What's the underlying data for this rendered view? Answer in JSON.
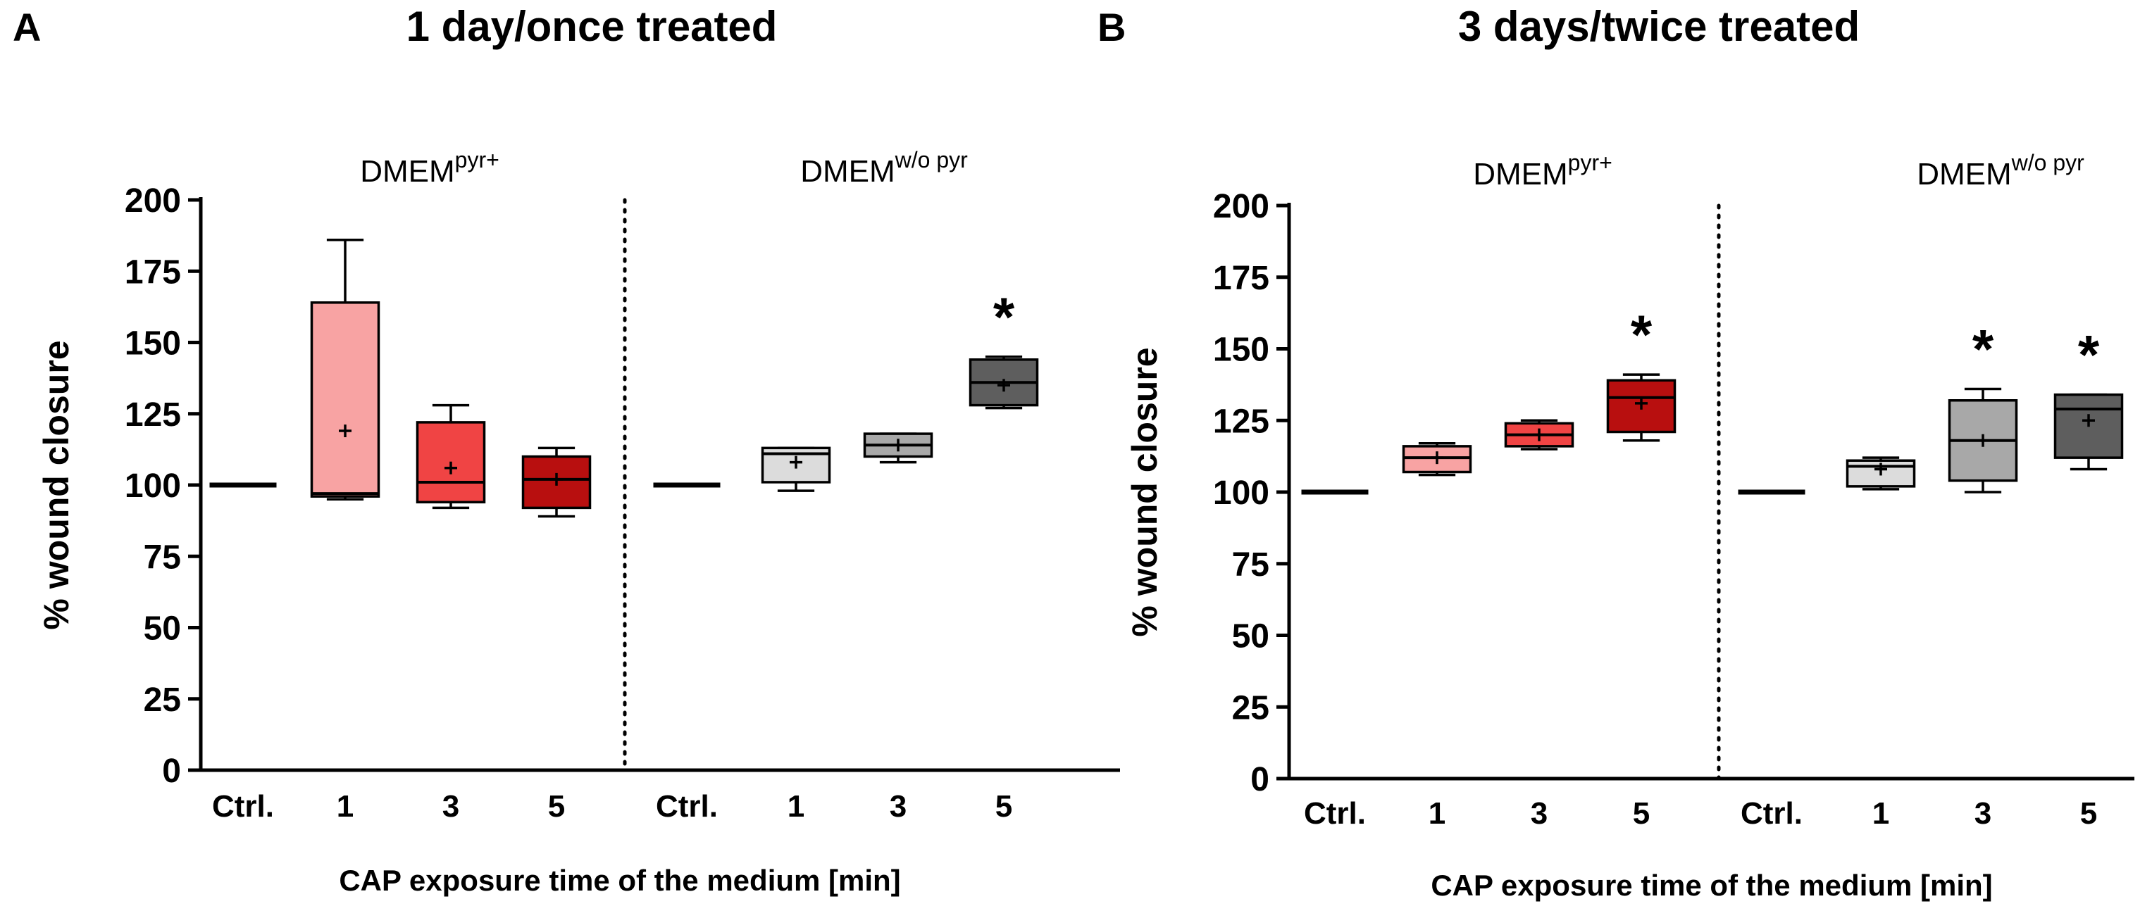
{
  "chart_data": [
    {
      "type": "box",
      "panel_label": "A",
      "title": "1 day/once treated",
      "ylabel": "% wound closure",
      "xlabel": "CAP exposure time of the medium [min]",
      "ylim": [
        0,
        200
      ],
      "yticks": [
        "0",
        "25",
        "50",
        "75",
        "100",
        "125",
        "150",
        "175",
        "200"
      ],
      "grid": false,
      "groups": [
        {
          "base": "DMEM",
          "sup": "pyr+",
          "boxes": [
            {
              "label": "Ctrl.",
              "color": "#000000",
              "whisker_low": 100,
              "q1": 100,
              "median": 100,
              "q3": 100,
              "whisker_high": 100,
              "mean": 100,
              "sig": ""
            },
            {
              "label": "1",
              "color": "#F8A3A3",
              "whisker_low": 95,
              "q1": 96,
              "median": 97,
              "q3": 164,
              "whisker_high": 186,
              "mean": 119,
              "sig": ""
            },
            {
              "label": "3",
              "color": "#F04444",
              "whisker_low": 92,
              "q1": 94,
              "median": 101,
              "q3": 122,
              "whisker_high": 128,
              "mean": 106,
              "sig": ""
            },
            {
              "label": "5",
              "color": "#B80F0F",
              "whisker_low": 89,
              "q1": 92,
              "median": 102,
              "q3": 110,
              "whisker_high": 113,
              "mean": 102,
              "sig": ""
            }
          ]
        },
        {
          "base": "DMEM",
          "sup": "w/o pyr",
          "boxes": [
            {
              "label": "Ctrl.",
              "color": "#000000",
              "whisker_low": 100,
              "q1": 100,
              "median": 100,
              "q3": 100,
              "whisker_high": 100,
              "mean": 100,
              "sig": ""
            },
            {
              "label": "1",
              "color": "#DCDCDC",
              "whisker_low": 98,
              "q1": 101,
              "median": 111,
              "q3": 113,
              "whisker_high": 113,
              "mean": 108,
              "sig": ""
            },
            {
              "label": "3",
              "color": "#A8A8A8",
              "whisker_low": 108,
              "q1": 110,
              "median": 114,
              "q3": 118,
              "whisker_high": 118,
              "mean": 114,
              "sig": ""
            },
            {
              "label": "5",
              "color": "#5E5E5E",
              "whisker_low": 127,
              "q1": 128,
              "median": 136,
              "q3": 144,
              "whisker_high": 145,
              "mean": 135,
              "sig": "*"
            }
          ]
        }
      ]
    },
    {
      "type": "box",
      "panel_label": "B",
      "title": "3 days/twice treated",
      "ylabel": "% wound closure",
      "xlabel": "CAP exposure time of the medium [min]",
      "ylim": [
        0,
        200
      ],
      "yticks": [
        "0",
        "25",
        "50",
        "75",
        "100",
        "125",
        "150",
        "175",
        "200"
      ],
      "grid": false,
      "groups": [
        {
          "base": "DMEM",
          "sup": "pyr+",
          "boxes": [
            {
              "label": "Ctrl.",
              "color": "#000000",
              "whisker_low": 100,
              "q1": 100,
              "median": 100,
              "q3": 100,
              "whisker_high": 100,
              "mean": 100,
              "sig": ""
            },
            {
              "label": "1",
              "color": "#F8A3A3",
              "whisker_low": 106,
              "q1": 107,
              "median": 112,
              "q3": 116,
              "whisker_high": 117,
              "mean": 112,
              "sig": ""
            },
            {
              "label": "3",
              "color": "#F04444",
              "whisker_low": 115,
              "q1": 116,
              "median": 120,
              "q3": 124,
              "whisker_high": 125,
              "mean": 120,
              "sig": ""
            },
            {
              "label": "5",
              "color": "#B80F0F",
              "whisker_low": 118,
              "q1": 121,
              "median": 133,
              "q3": 139,
              "whisker_high": 141,
              "mean": 131,
              "sig": "*"
            }
          ]
        },
        {
          "base": "DMEM",
          "sup": "w/o pyr",
          "boxes": [
            {
              "label": "Ctrl.",
              "color": "#000000",
              "whisker_low": 100,
              "q1": 100,
              "median": 100,
              "q3": 100,
              "whisker_high": 100,
              "mean": 100,
              "sig": ""
            },
            {
              "label": "1",
              "color": "#DCDCDC",
              "whisker_low": 101,
              "q1": 102,
              "median": 109,
              "q3": 111,
              "whisker_high": 112,
              "mean": 108,
              "sig": ""
            },
            {
              "label": "3",
              "color": "#A8A8A8",
              "whisker_low": 100,
              "q1": 104,
              "median": 118,
              "q3": 132,
              "whisker_high": 136,
              "mean": 118,
              "sig": "*"
            },
            {
              "label": "5",
              "color": "#5E5E5E",
              "whisker_low": 108,
              "q1": 112,
              "median": 129,
              "q3": 134,
              "whisker_high": 134,
              "mean": 125,
              "sig": "*"
            }
          ]
        }
      ]
    }
  ]
}
